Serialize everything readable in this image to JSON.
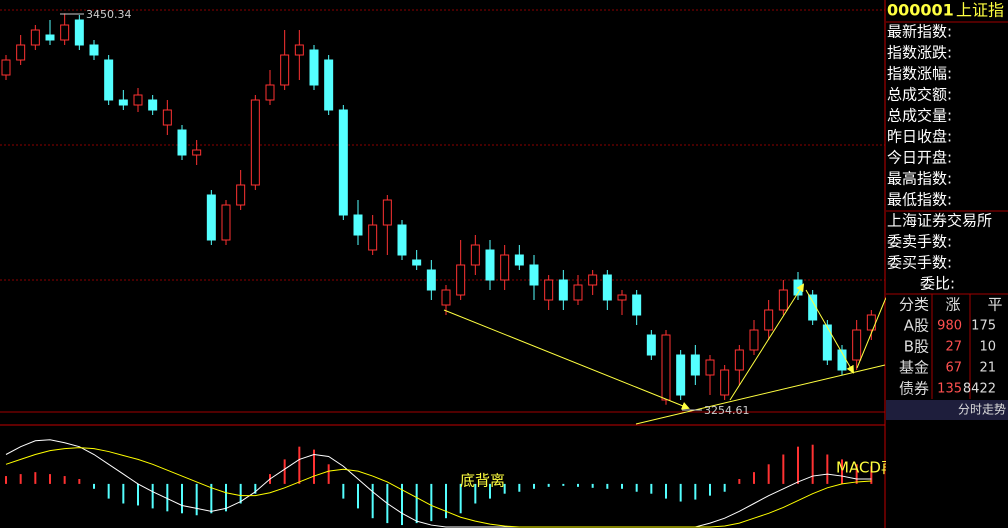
{
  "chart_data": {
    "type": "candlestick",
    "ylim": [
      3247,
      3457
    ],
    "open": [
      3419.5,
      3427,
      3434.5,
      3439.5,
      3437,
      3447,
      3434.5,
      3427,
      3407,
      3404.5,
      3407,
      3394.5,
      3392,
      3379.5,
      3359.5,
      3337,
      3354.5,
      3364.5,
      3407,
      3414.5,
      3429.5,
      3432,
      3427,
      3402,
      3349.5,
      3332,
      3344.5,
      3344.5,
      3327,
      3322,
      3304.5,
      3309.5,
      3324.5,
      3332,
      3317,
      3329.5,
      3324.5,
      3307,
      3317,
      3307,
      3314.5,
      3319.5,
      3307,
      3309.5,
      3289.5,
      3257,
      3279.5,
      3279.5,
      3269.5,
      3259.5,
      3272,
      3282,
      3292,
      3302,
      3317,
      3309.5,
      3294.5,
      3282,
      3277,
      3292
    ],
    "close": [
      3427,
      3434.5,
      3442,
      3437,
      3444.5,
      3434.5,
      3429.5,
      3407,
      3404.5,
      3409.5,
      3402,
      3402,
      3379.5,
      3382,
      3337,
      3354.5,
      3364.5,
      3407,
      3414.5,
      3429.5,
      3434.5,
      3414.5,
      3402,
      3349.5,
      3339.5,
      3344.5,
      3357,
      3329.5,
      3324.5,
      3312,
      3312,
      3324.5,
      3334.5,
      3317,
      3329.5,
      3324.5,
      3314.5,
      3317,
      3307,
      3314.5,
      3319.5,
      3307,
      3309.5,
      3299.5,
      3279.5,
      3289.5,
      3259.5,
      3269.5,
      3277,
      3272,
      3282,
      3292,
      3302,
      3312,
      3309.5,
      3297,
      3277,
      3272,
      3292,
      3299.5
    ],
    "high": [
      3429.5,
      3439.5,
      3444.5,
      3447,
      3450.34,
      3449.5,
      3437,
      3429.5,
      3412,
      3413,
      3409.5,
      3407,
      3394.5,
      3387,
      3362,
      3357,
      3372,
      3409.5,
      3422,
      3442,
      3442,
      3434.5,
      3429.5,
      3404.5,
      3357,
      3349.5,
      3359.5,
      3347,
      3332,
      3327,
      3314.5,
      3337,
      3339.5,
      3337,
      3334.5,
      3334.5,
      3329.5,
      3319.5,
      3322,
      3319.5,
      3322,
      3322,
      3312,
      3312,
      3292,
      3292,
      3282,
      3284.5,
      3279.5,
      3274.5,
      3284.5,
      3297,
      3307,
      3317,
      3321,
      3312,
      3297,
      3284.5,
      3297,
      3302
    ],
    "low": [
      3417,
      3424.5,
      3432,
      3434.5,
      3434.5,
      3432,
      3427,
      3404.5,
      3402,
      3401,
      3399.5,
      3389.5,
      3377,
      3374.5,
      3334.5,
      3334.5,
      3352,
      3362,
      3404.5,
      3412,
      3417,
      3412,
      3399.5,
      3347,
      3334.5,
      3329.5,
      3329.5,
      3327,
      3322,
      3307,
      3299.5,
      3307,
      3319.5,
      3312,
      3312,
      3322,
      3307,
      3302,
      3302,
      3304.5,
      3309.5,
      3302,
      3299.5,
      3294.5,
      3277,
      3254.61,
      3257,
      3264.5,
      3259.5,
      3257,
      3264.5,
      3279.5,
      3287,
      3299.5,
      3307,
      3294.5,
      3274.5,
      3269.5,
      3272,
      3287
    ],
    "up_color": "#ff3232",
    "down_color": "#54ffff",
    "annotations": [
      "底背离",
      "MACD再次金叉"
    ],
    "macd": {
      "ylim": [
        -45,
        55
      ],
      "histogram": [
        8,
        10,
        12,
        10,
        8,
        5,
        -5,
        -15,
        -20,
        -22,
        -25,
        -28,
        -30,
        -32,
        -30,
        -28,
        -20,
        -10,
        10,
        25,
        38,
        35,
        20,
        -15,
        -25,
        -35,
        -40,
        -42,
        -40,
        -38,
        -35,
        -30,
        -20,
        -15,
        -10,
        -8,
        -5,
        -3,
        -2,
        -3,
        -4,
        -5,
        -5,
        -8,
        -10,
        -15,
        -18,
        -16,
        -12,
        -8,
        5,
        12,
        20,
        30,
        38,
        40,
        30,
        25,
        20,
        18
      ],
      "series": [
        {
          "color": "#ffffff",
          "values": [
            30,
            38,
            44,
            45,
            42,
            38,
            30,
            20,
            10,
            0,
            -8,
            -15,
            -22,
            -25,
            -28,
            -25,
            -18,
            -8,
            5,
            15,
            25,
            30,
            28,
            18,
            5,
            -8,
            -20,
            -30,
            -38,
            -42,
            -44,
            -44,
            -44,
            -44,
            -44,
            -44,
            -44,
            -44,
            -44,
            -44,
            -44,
            -44,
            -44,
            -44,
            -44,
            -44,
            -44,
            -44,
            -40,
            -35,
            -28,
            -20,
            -12,
            -5,
            2,
            8,
            10,
            8,
            5,
            5
          ]
        },
        {
          "color": "#ffff00",
          "values": [
            20,
            25,
            30,
            34,
            36,
            37,
            36,
            33,
            29,
            25,
            20,
            14,
            8,
            2,
            -4,
            -9,
            -12,
            -12,
            -9,
            -4,
            2,
            8,
            13,
            15,
            13,
            8,
            2,
            -6,
            -14,
            -22,
            -28,
            -34,
            -38,
            -41,
            -43,
            -44,
            -44,
            -44,
            -44,
            -44,
            -44,
            -44,
            -44,
            -44,
            -44,
            -44,
            -44,
            -44,
            -44,
            -43,
            -40,
            -35,
            -30,
            -24,
            -17,
            -10,
            -4,
            0,
            2,
            3
          ]
        }
      ]
    }
  },
  "side_panel": {
    "code": "000001",
    "name": "上证指",
    "fields": [
      "最新指数:",
      "指数涨跌:",
      "指数涨幅:",
      "总成交额:",
      "总成交量:",
      "昨日收盘:",
      "今日开盘:",
      "最高指数:",
      "最低指数:"
    ],
    "exchange": "上海证券交易所",
    "order_fields": [
      "委卖手数:",
      "委买手数:",
      "委比:"
    ],
    "table": {
      "header": [
        "分类",
        "涨",
        "平"
      ],
      "rows": [
        [
          "A股",
          980,
          175
        ],
        [
          "B股",
          27,
          10
        ],
        [
          "基金",
          67,
          21
        ],
        [
          "债券",
          135,
          8422
        ]
      ]
    },
    "button": "分时走势"
  }
}
